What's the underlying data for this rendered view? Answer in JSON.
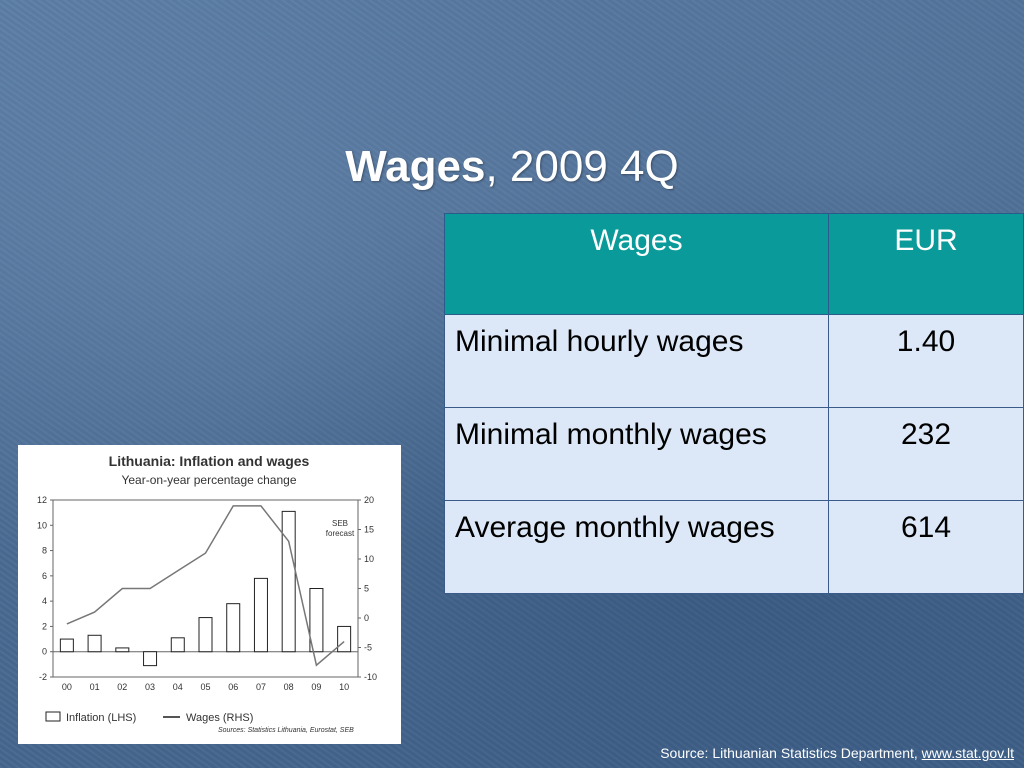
{
  "slide": {
    "title_bold": "Wages",
    "title_rest": ", 2009 4Q"
  },
  "table": {
    "headers": [
      "Wages",
      "EUR"
    ],
    "rows": [
      {
        "label": "Minimal hourly wages",
        "value": "1.40"
      },
      {
        "label": "Minimal monthly wages",
        "value": "232"
      },
      {
        "label": "Average monthly wages",
        "value": "614"
      }
    ]
  },
  "chart_data": {
    "type": "bar",
    "title": "Lithuania: Inflation and wages",
    "subtitle": "Year-on-year percentage change",
    "annotation": "SEB forecast",
    "categories": [
      "00",
      "01",
      "02",
      "03",
      "04",
      "05",
      "06",
      "07",
      "08",
      "09",
      "10"
    ],
    "ylim_left": [
      -2,
      12
    ],
    "yticks_left": [
      "12",
      "10",
      "8",
      "6",
      "4",
      "2",
      "0",
      "-2"
    ],
    "ylim_right": [
      -10,
      20
    ],
    "yticks_right": [
      "20",
      "15",
      "10",
      "5",
      "0",
      "-5",
      "-10"
    ],
    "series": [
      {
        "name": "Inflation (LHS)",
        "type": "bar",
        "axis": "left",
        "values": [
          1.0,
          1.3,
          0.3,
          -1.1,
          1.1,
          2.7,
          3.8,
          5.8,
          11.1,
          5.0,
          2.0
        ]
      },
      {
        "name": "Wages (RHS)",
        "type": "line",
        "axis": "right",
        "values": [
          -1,
          1,
          5,
          5,
          8,
          11,
          19,
          19,
          13,
          -8,
          -4
        ]
      }
    ],
    "legend_position": "bottom-left",
    "source_note": "Sources: Statistics Lithuania, Eurostat, SEB"
  },
  "source": {
    "text": "Source: Lithuanian Statistics Department, ",
    "link": "www.stat.gov.lt"
  },
  "colors": {
    "header_bg": "#0a9a9a",
    "row_bg": "#dce8f7",
    "background": "#4b6d95"
  }
}
